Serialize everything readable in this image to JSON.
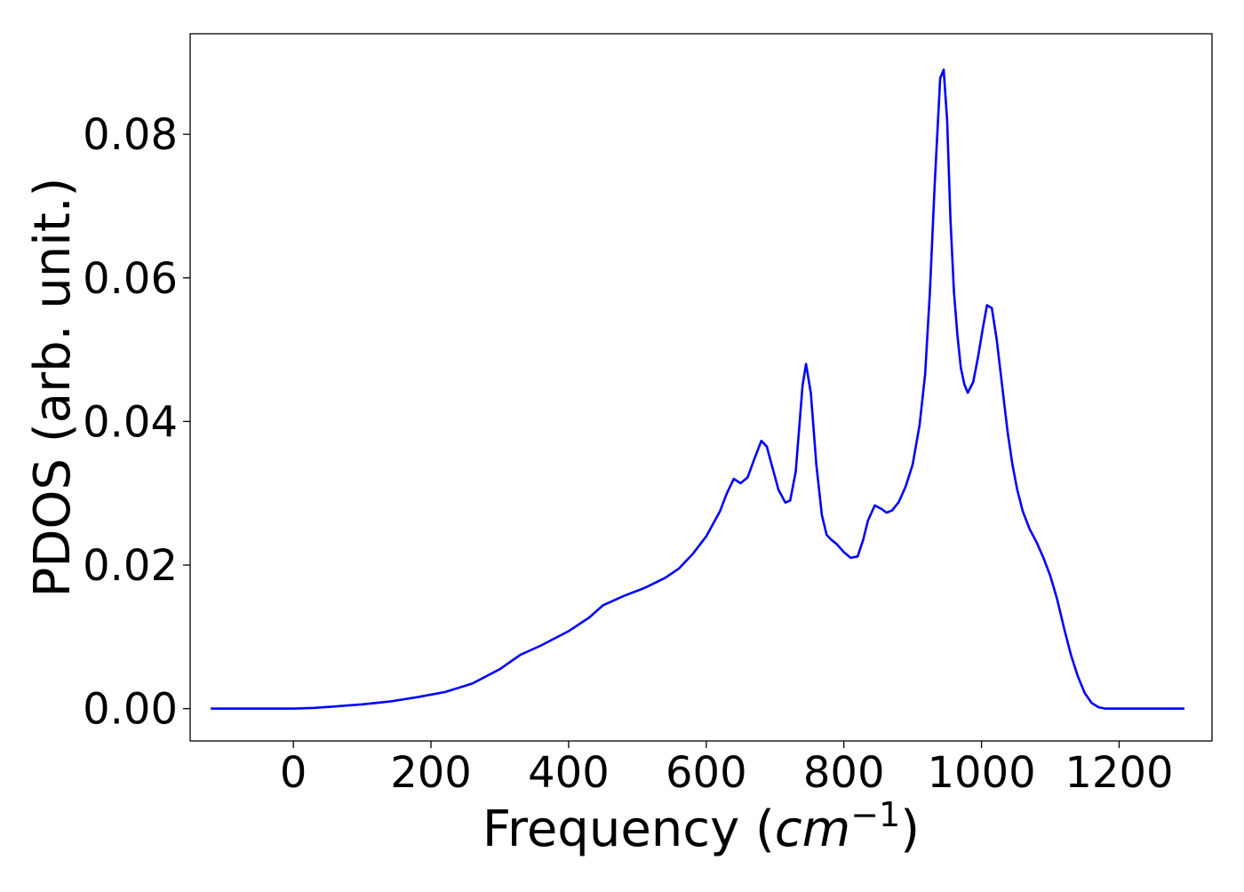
{
  "chart_data": {
    "type": "line",
    "title": "",
    "xlabel": "Frequency (",
    "xlabel_math": "cm",
    "xlabel_sup": "−1",
    "xlabel_close": ")",
    "ylabel": "PDOS (arb. unit.)",
    "xlim": [
      -150,
      1335
    ],
    "ylim": [
      -0.0045,
      0.094
    ],
    "xticks": [
      0,
      200,
      400,
      600,
      800,
      1000,
      1200
    ],
    "xtick_labels": [
      "0",
      "200",
      "400",
      "600",
      "800",
      "1000",
      "1200"
    ],
    "yticks": [
      0.0,
      0.02,
      0.04,
      0.06,
      0.08
    ],
    "ytick_labels": [
      "0.00",
      "0.02",
      "0.04",
      "0.06",
      "0.08"
    ],
    "grid": false,
    "legend": "none",
    "series": [
      {
        "color": "#0000ff",
        "x": [
          -120,
          -50,
          0,
          30,
          60,
          100,
          140,
          180,
          220,
          260,
          300,
          330,
          360,
          400,
          430,
          450,
          480,
          510,
          540,
          560,
          580,
          600,
          620,
          630,
          640,
          650,
          660,
          670,
          680,
          688,
          695,
          705,
          715,
          722,
          730,
          740,
          745,
          752,
          760,
          768,
          775,
          782,
          790,
          800,
          810,
          820,
          828,
          835,
          845,
          855,
          862,
          870,
          880,
          890,
          900,
          910,
          918,
          925,
          932,
          940,
          945,
          950,
          955,
          960,
          965,
          970,
          975,
          980,
          988,
          995,
          1002,
          1008,
          1015,
          1022,
          1030,
          1038,
          1045,
          1052,
          1060,
          1070,
          1080,
          1090,
          1100,
          1110,
          1120,
          1130,
          1140,
          1150,
          1160,
          1170,
          1180,
          1190,
          1200,
          1220,
          1250,
          1295
        ],
        "y": [
          0.0,
          0.0,
          0.0,
          0.0001,
          0.0003,
          0.0006,
          0.001,
          0.0016,
          0.0023,
          0.0035,
          0.0055,
          0.0075,
          0.0088,
          0.0108,
          0.0127,
          0.0144,
          0.0157,
          0.0168,
          0.0182,
          0.0195,
          0.0215,
          0.024,
          0.0275,
          0.03,
          0.032,
          0.0314,
          0.0322,
          0.0348,
          0.0373,
          0.0365,
          0.034,
          0.0305,
          0.0287,
          0.029,
          0.033,
          0.045,
          0.048,
          0.044,
          0.034,
          0.027,
          0.0242,
          0.0235,
          0.0229,
          0.0218,
          0.021,
          0.0212,
          0.0235,
          0.0262,
          0.0283,
          0.0278,
          0.0273,
          0.0276,
          0.0288,
          0.031,
          0.034,
          0.0395,
          0.0465,
          0.058,
          0.073,
          0.0878,
          0.089,
          0.082,
          0.068,
          0.058,
          0.052,
          0.0475,
          0.0452,
          0.044,
          0.0455,
          0.049,
          0.053,
          0.0562,
          0.0558,
          0.0515,
          0.045,
          0.0385,
          0.034,
          0.0305,
          0.0275,
          0.025,
          0.0232,
          0.021,
          0.0185,
          0.0152,
          0.0112,
          0.0075,
          0.0045,
          0.0022,
          0.0008,
          0.0002,
          0.0,
          0.0,
          0.0,
          0.0,
          0.0,
          0.0
        ]
      }
    ]
  }
}
